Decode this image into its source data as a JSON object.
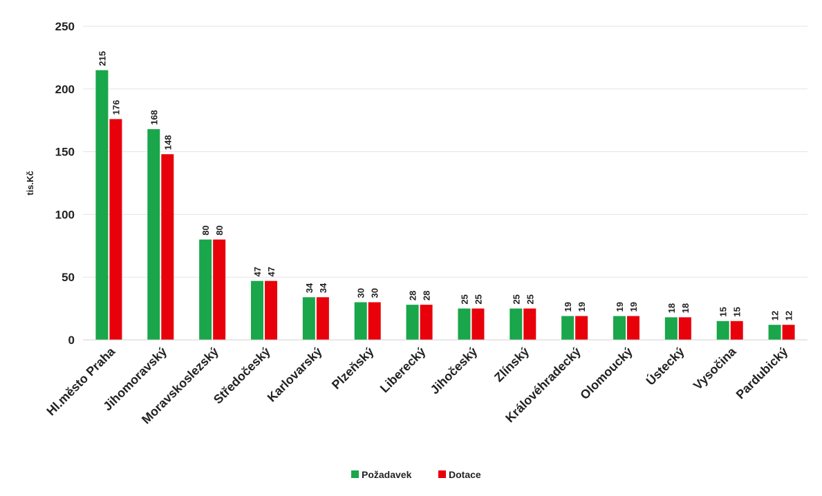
{
  "chart_data": {
    "type": "bar",
    "ylabel": "tis.Kč",
    "ylim": [
      0,
      250
    ],
    "yticks": [
      0,
      50,
      100,
      150,
      200,
      250
    ],
    "grid": true,
    "legend_position": "bottom",
    "categories": [
      "Hl.město Praha",
      "Jihomoravský",
      "Moravskoslezský",
      "Středočeský",
      "Karlovarský",
      "Plzeňský",
      "Liberecký",
      "Jihočeský",
      "Zlínský",
      "Královéhradecký",
      "Olomoucký",
      "Ústecký",
      "Vysočina",
      "Pardubický"
    ],
    "series": [
      {
        "name": "Požadavek",
        "color": "#1aa64a",
        "values": [
          215,
          168,
          80,
          47,
          34,
          30,
          28,
          25,
          25,
          19,
          19,
          18,
          15,
          12
        ]
      },
      {
        "name": "Dotace",
        "color": "#e8000b",
        "values": [
          176,
          148,
          80,
          47,
          34,
          30,
          28,
          25,
          25,
          19,
          19,
          18,
          15,
          12
        ]
      }
    ]
  }
}
